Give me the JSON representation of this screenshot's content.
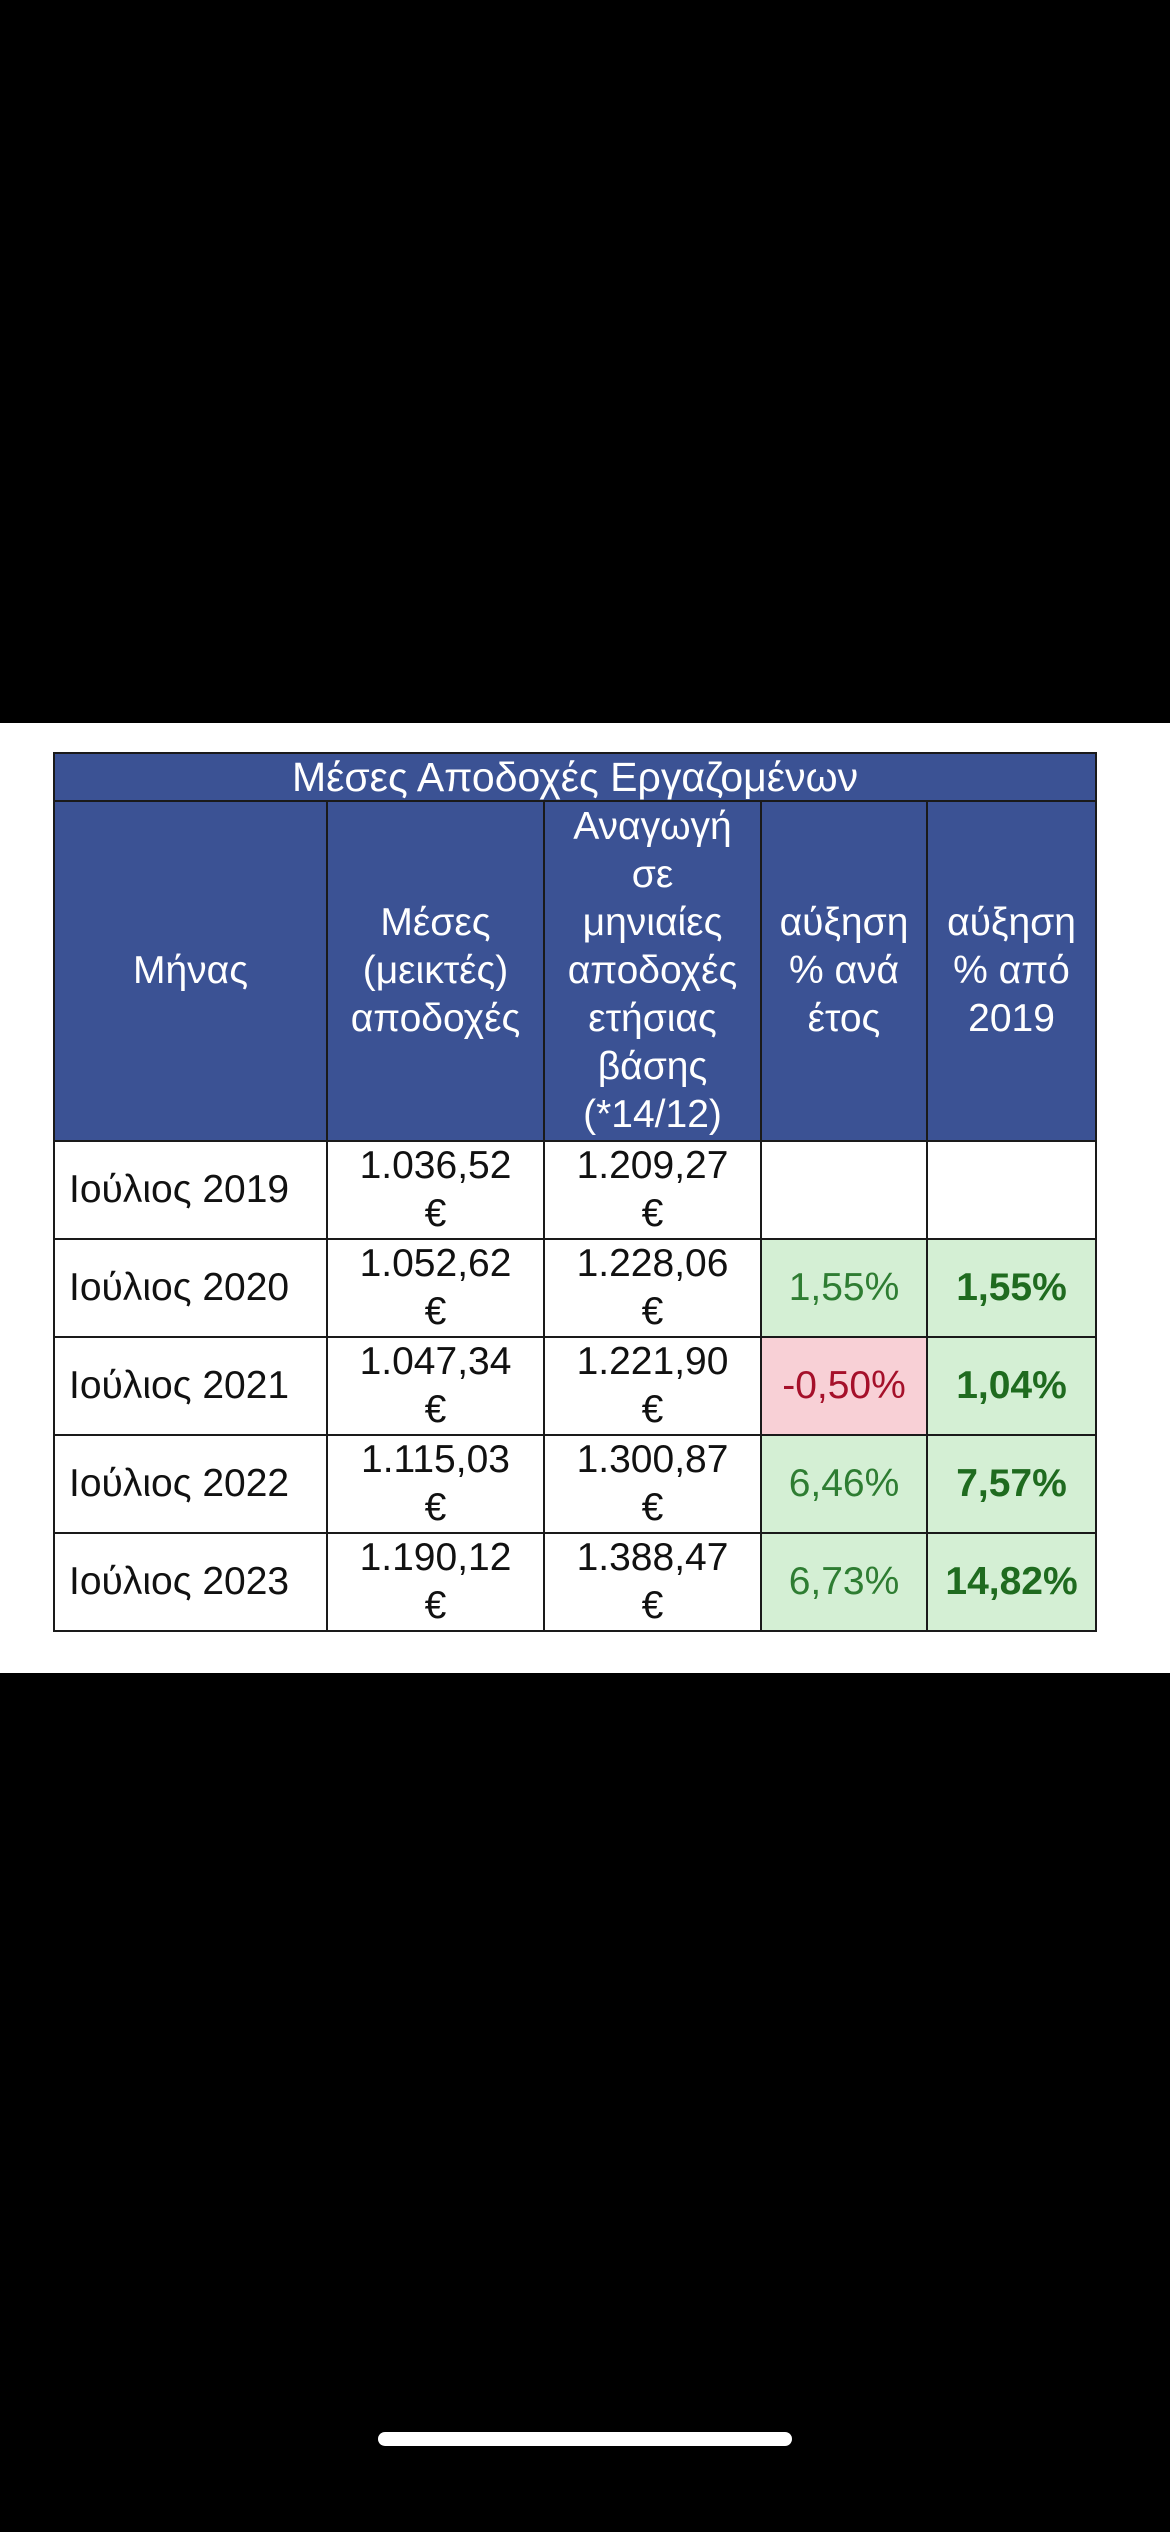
{
  "table": {
    "title": "Μέσες Αποδοχές Εργαζομένων",
    "headers": {
      "month": "Μήνας",
      "avg_gross": [
        "Μέσες",
        "(μεικτές)",
        "αποδοχές"
      ],
      "monthly_annual": [
        "Αναγωγή",
        "σε",
        "μηνιαίες",
        "αποδοχές",
        "ετήσιας",
        "βάσης",
        "(*14/12)"
      ],
      "yoy": [
        "αύξηση",
        "% ανά",
        "έτος"
      ],
      "since2019": [
        "αύξηση",
        "% από",
        "2019"
      ]
    },
    "currency": "€",
    "rows": [
      {
        "month": "Ιούλιος 2019",
        "avg_gross": "1.036,52",
        "monthly_annual": "1.209,27",
        "yoy": "",
        "since2019": ""
      },
      {
        "month": "Ιούλιος 2020",
        "avg_gross": "1.052,62",
        "monthly_annual": "1.228,06",
        "yoy": "1,55%",
        "since2019": "1,55%"
      },
      {
        "month": "Ιούλιος 2021",
        "avg_gross": "1.047,34",
        "monthly_annual": "1.221,90",
        "yoy": "-0,50%",
        "since2019": "1,04%"
      },
      {
        "month": "Ιούλιος 2022",
        "avg_gross": "1.115,03",
        "monthly_annual": "1.300,87",
        "yoy": "6,46%",
        "since2019": "7,57%"
      },
      {
        "month": "Ιούλιος 2023",
        "avg_gross": "1.190,12",
        "monthly_annual": "1.388,47",
        "yoy": "6,73%",
        "since2019": "14,82%"
      }
    ]
  },
  "colors": {
    "header_bg": "#3b5294",
    "positive_bg": "#d4efd4",
    "negative_bg": "#f8d0d6",
    "positive_text": "#2e7d32",
    "negative_text": "#a5102a"
  }
}
